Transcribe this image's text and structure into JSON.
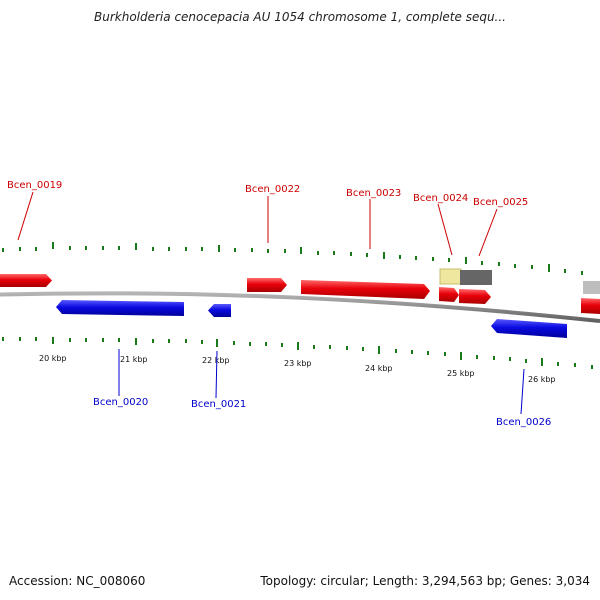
{
  "title": "Burkholderia cenocepacia AU 1054 chromosome 1, complete sequ...",
  "footer": {
    "accession": "Accession: NC_008060",
    "summary": "Topology: circular; Length: 3,294,563 bp; Genes: 3,034"
  },
  "colors": {
    "forward": "#e8000a",
    "reverse": "#0a0ae0",
    "tick": "#1a7a1a",
    "backbone": "#8c8c8c",
    "pseudo_pale": "#efe6a0",
    "pseudo_dark": "#666666"
  },
  "scale_labels": [
    "20 kbp",
    "21 kbp",
    "22 kbp",
    "23 kbp",
    "24 kbp",
    "25 kbp",
    "26 kbp"
  ],
  "gene_labels": {
    "forward": [
      "Bcen_0019",
      "Bcen_0022",
      "Bcen_0023",
      "Bcen_0024",
      "Bcen_0025"
    ],
    "reverse": [
      "Bcen_0020",
      "Bcen_0021",
      "Bcen_0026"
    ]
  }
}
